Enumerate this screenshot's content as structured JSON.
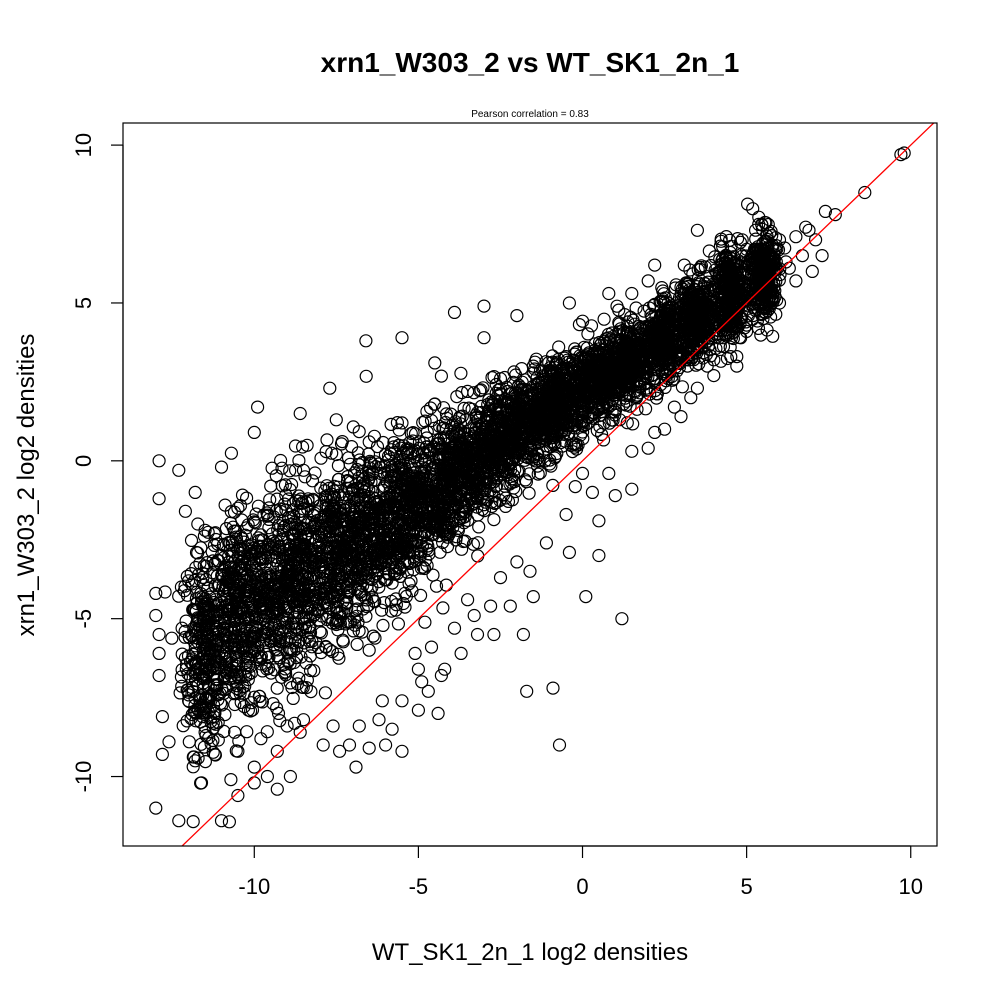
{
  "chart_data": {
    "type": "scatter",
    "title": "xrn1_W303_2 vs WT_SK1_2n_1",
    "subtitle": "Pearson correlation =  0.83",
    "xlabel": "WT_SK1_2n_1 log2 densities",
    "ylabel": "xrn1_W303_2 log2 densities",
    "xlim": [
      -14,
      10.8
    ],
    "ylim": [
      -12.2,
      10.7
    ],
    "xticks": [
      -10,
      -5,
      0,
      5,
      10
    ],
    "yticks": [
      -10,
      -5,
      0,
      5,
      10
    ],
    "x_tick_labels": [
      "-10",
      "-5",
      "0",
      "5",
      "10"
    ],
    "y_tick_labels": [
      "-10",
      "-5",
      "0",
      "5",
      "10"
    ],
    "grid": false,
    "reference_line": {
      "slope": 1,
      "intercept": 0,
      "color": "#ff0000"
    },
    "point_style": {
      "marker": "open-circle",
      "color": "#000000"
    },
    "series": [
      {
        "points": [
          [
            9.7,
            9.7
          ],
          [
            9.8,
            9.75
          ],
          [
            8.6,
            8.5
          ],
          [
            7.7,
            7.8
          ],
          [
            7.4,
            7.9
          ],
          [
            7.3,
            6.5
          ],
          [
            6.8,
            7.4
          ],
          [
            7.1,
            7.0
          ],
          [
            6.9,
            7.3
          ],
          [
            6.5,
            7.1
          ],
          [
            6.0,
            7.0
          ],
          [
            5.8,
            6.4
          ],
          [
            5.5,
            6.9
          ],
          [
            5.0,
            6.7
          ],
          [
            4.5,
            6.6
          ],
          [
            4.2,
            6.8
          ],
          [
            3.5,
            7.3
          ],
          [
            3.1,
            6.2
          ],
          [
            4.0,
            5.5
          ],
          [
            4.6,
            4.2
          ],
          [
            5.0,
            4.3
          ],
          [
            4.7,
            3.3
          ],
          [
            4.7,
            3.0
          ],
          [
            4.0,
            3.2
          ],
          [
            3.5,
            3.7
          ],
          [
            4.6,
            5.3
          ],
          [
            5.7,
            5.5
          ],
          [
            5.5,
            6.0
          ],
          [
            6.2,
            6.3
          ],
          [
            3.0,
            5.5
          ],
          [
            2.5,
            5.0
          ],
          [
            2.2,
            6.2
          ],
          [
            2.0,
            5.7
          ],
          [
            1.5,
            5.3
          ],
          [
            0.8,
            5.3
          ],
          [
            -0.4,
            5.0
          ],
          [
            -2.0,
            4.6
          ],
          [
            -3.0,
            4.9
          ],
          [
            -3.9,
            4.7
          ],
          [
            -5.5,
            3.9
          ],
          [
            -6.6,
            3.8
          ],
          [
            -3.0,
            3.9
          ],
          [
            -4.5,
            3.1
          ],
          [
            -7.7,
            2.3
          ],
          [
            -9.9,
            1.7
          ],
          [
            -8.6,
            1.5
          ],
          [
            -7.5,
            1.3
          ],
          [
            -10.0,
            0.9
          ],
          [
            -12.9,
            0.0
          ],
          [
            -12.3,
            -0.3
          ],
          [
            -11.0,
            -0.2
          ],
          [
            -11.8,
            -1.0
          ],
          [
            -12.9,
            -1.2
          ],
          [
            -12.1,
            -1.6
          ],
          [
            -13.0,
            -4.2
          ],
          [
            -13.0,
            -4.9
          ],
          [
            -12.9,
            -5.5
          ],
          [
            -12.9,
            -6.1
          ],
          [
            -12.9,
            -6.8
          ],
          [
            -12.8,
            -8.1
          ],
          [
            -12.8,
            -9.3
          ],
          [
            -13.0,
            -11.0
          ],
          [
            -12.3,
            -11.4
          ],
          [
            -11.0,
            -11.4
          ],
          [
            -10.5,
            -10.6
          ],
          [
            -10.0,
            -10.2
          ],
          [
            -9.6,
            -10.0
          ],
          [
            -9.3,
            -10.4
          ],
          [
            -8.9,
            -10.0
          ],
          [
            -11.2,
            -9.3
          ],
          [
            -11.8,
            -9.5
          ],
          [
            -12.6,
            -8.9
          ],
          [
            -11.5,
            -8.6
          ],
          [
            -10.5,
            -9.2
          ],
          [
            -10.0,
            -9.7
          ],
          [
            -9.3,
            -9.2
          ],
          [
            -9.0,
            -8.4
          ],
          [
            -8.5,
            -8.2
          ],
          [
            -7.9,
            -9.0
          ],
          [
            -7.4,
            -9.2
          ],
          [
            -7.1,
            -9.0
          ],
          [
            -6.9,
            -9.7
          ],
          [
            -6.5,
            -9.1
          ],
          [
            -6.0,
            -9.0
          ],
          [
            -5.5,
            -9.2
          ],
          [
            -5.8,
            -8.5
          ],
          [
            -6.2,
            -8.2
          ],
          [
            -5.0,
            -7.9
          ],
          [
            -4.9,
            -7.0
          ],
          [
            -4.4,
            -8.0
          ],
          [
            -4.7,
            -7.3
          ],
          [
            -4.2,
            -6.6
          ],
          [
            -5.1,
            -6.1
          ],
          [
            -4.6,
            -5.9
          ],
          [
            -3.7,
            -6.1
          ],
          [
            -3.2,
            -5.5
          ],
          [
            -2.7,
            -5.5
          ],
          [
            -1.8,
            -5.5
          ],
          [
            -2.2,
            -4.6
          ],
          [
            -2.8,
            -4.6
          ],
          [
            -3.5,
            -4.4
          ],
          [
            -1.5,
            -4.3
          ],
          [
            -1.6,
            -3.5
          ],
          [
            -1.7,
            -7.3
          ],
          [
            -0.9,
            -7.2
          ],
          [
            -0.7,
            -9.0
          ],
          [
            1.2,
            -5.0
          ],
          [
            0.1,
            -4.3
          ],
          [
            0.5,
            -3.0
          ],
          [
            -0.4,
            -2.9
          ],
          [
            0.5,
            -1.9
          ],
          [
            1.0,
            -1.1
          ],
          [
            1.5,
            -0.9
          ],
          [
            0.0,
            -0.4
          ],
          [
            -1.0,
            -0.1
          ],
          [
            2.0,
            0.4
          ],
          [
            2.5,
            1.0
          ],
          [
            3.0,
            1.4
          ],
          [
            3.5,
            2.3
          ],
          [
            4.0,
            2.7
          ],
          [
            4.5,
            3.6
          ],
          [
            5.0,
            4.1
          ],
          [
            5.5,
            4.5
          ],
          [
            6.0,
            5.0
          ],
          [
            6.5,
            5.7
          ],
          [
            7.0,
            6.0
          ],
          [
            2.5,
            3.4
          ],
          [
            3.2,
            3.0
          ],
          [
            1.8,
            4.0
          ],
          [
            1.2,
            3.1
          ],
          [
            0.5,
            2.8
          ],
          [
            -0.5,
            3.3
          ],
          [
            -1.5,
            3.0
          ],
          [
            -2.5,
            2.6
          ],
          [
            -3.5,
            2.2
          ],
          [
            -4.5,
            1.8
          ],
          [
            -5.5,
            1.2
          ],
          [
            -6.5,
            0.6
          ],
          [
            -7.5,
            0.2
          ],
          [
            -8.5,
            -0.3
          ],
          [
            -9.5,
            -0.8
          ],
          [
            -10.5,
            -1.5
          ],
          [
            -11.5,
            -2.2
          ],
          [
            -11.0,
            -3.0
          ],
          [
            -12.0,
            -3.8
          ],
          [
            -11.5,
            -4.7
          ],
          [
            -12.2,
            -5.3
          ],
          [
            -11.8,
            -6.4
          ],
          [
            -11.4,
            -7.2
          ],
          [
            -12.0,
            -7.6
          ],
          [
            -11.2,
            -8.0
          ],
          [
            -10.6,
            -8.6
          ],
          [
            -9.8,
            -8.8
          ],
          [
            -8.6,
            -8.6
          ],
          [
            -7.6,
            -8.4
          ],
          [
            -6.8,
            -8.4
          ],
          [
            -6.1,
            -7.6
          ],
          [
            -5.5,
            -7.6
          ],
          [
            -5.0,
            -6.6
          ],
          [
            -4.3,
            -6.8
          ],
          [
            -3.9,
            -5.3
          ],
          [
            -3.3,
            -4.9
          ],
          [
            -2.5,
            -3.7
          ],
          [
            -2.0,
            -3.2
          ],
          [
            -1.1,
            -2.6
          ],
          [
            -0.5,
            -1.7
          ],
          [
            0.3,
            -1.0
          ],
          [
            0.8,
            -0.4
          ],
          [
            1.5,
            0.3
          ],
          [
            2.2,
            0.9
          ],
          [
            2.8,
            1.7
          ],
          [
            3.3,
            2.0
          ],
          [
            3.8,
            3.0
          ],
          [
            4.3,
            3.9
          ],
          [
            5.2,
            4.6
          ],
          [
            5.8,
            5.2
          ],
          [
            6.3,
            6.1
          ],
          [
            6.7,
            6.5
          ]
        ]
      }
    ],
    "dense_cloud": {
      "note_free": true,
      "segments": [
        [
          -11.5,
          -6.0,
          1.6,
          0.35
        ],
        [
          -10.5,
          -5.0,
          1.6,
          0.45
        ],
        [
          -9.5,
          -4.3,
          1.5,
          0.55
        ],
        [
          -8.5,
          -3.6,
          1.5,
          0.6
        ],
        [
          -7.5,
          -3.0,
          1.4,
          0.6
        ],
        [
          -6.5,
          -2.3,
          1.3,
          0.6
        ],
        [
          -5.5,
          -1.6,
          1.2,
          0.55
        ],
        [
          -4.5,
          -0.9,
          1.0,
          0.55
        ],
        [
          -3.5,
          -0.2,
          0.9,
          0.5
        ],
        [
          -2.5,
          0.6,
          0.8,
          0.5
        ],
        [
          -1.5,
          1.3,
          0.7,
          0.5
        ],
        [
          -0.5,
          2.0,
          0.65,
          0.45
        ],
        [
          0.5,
          2.6,
          0.6,
          0.4
        ],
        [
          1.5,
          3.2,
          0.6,
          0.4
        ],
        [
          2.5,
          3.8,
          0.6,
          0.3
        ],
        [
          3.5,
          4.5,
          0.65,
          0.3
        ],
        [
          4.5,
          5.3,
          0.7,
          0.25
        ],
        [
          5.5,
          5.9,
          0.7,
          0.2
        ]
      ]
    }
  }
}
